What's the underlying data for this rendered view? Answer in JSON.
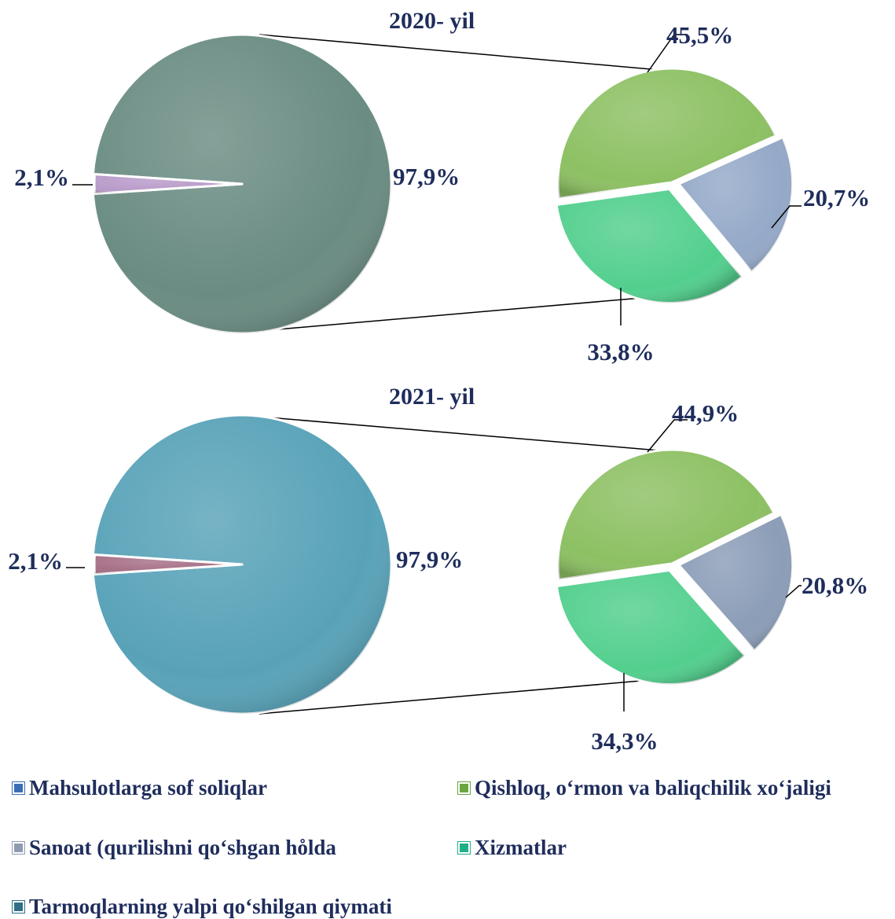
{
  "chart_data": [
    {
      "type": "pie",
      "title": "2020- yil",
      "main_pie": [
        {
          "label": "Mahsulotlarga sof soliqlar",
          "value": 2.1,
          "value_label": "2,1%",
          "color": "#b89ac9"
        },
        {
          "label": "Tarmoqlarning yalpi qo‘shilgan qiymati",
          "value": 97.9,
          "value_label": "97,9%",
          "color": "#6a8c82"
        }
      ],
      "breakdown_pie": [
        {
          "label": "Qishloq, o‘rmon va baliqchilik xo‘jaligi",
          "value": 45.5,
          "value_label": "45,5%",
          "color": "#8dc063"
        },
        {
          "label": "Sanoat (qurilishni qo‘shgan holda",
          "value": 20.7,
          "value_label": "20,7%",
          "color": "#94a9c8"
        },
        {
          "label": "Xizmatlar",
          "value": 33.8,
          "value_label": "33,8%",
          "color": "#52cf8d"
        }
      ]
    },
    {
      "type": "pie",
      "title": "2021- yil",
      "main_pie": [
        {
          "label": "Mahsulotlarga sof soliqlar",
          "value": 2.1,
          "value_label": "2,1%",
          "color": "#a66f86"
        },
        {
          "label": "Tarmoqlarning yalpi qo‘shilgan qiymati",
          "value": 97.9,
          "value_label": "97,9%",
          "color": "#58a2b8"
        }
      ],
      "breakdown_pie": [
        {
          "label": "Qishloq, o‘rmon va baliqchilik xo‘jaligi",
          "value": 44.9,
          "value_label": "44,9%",
          "color": "#8dc063"
        },
        {
          "label": "Sanoat (qurilishni qo‘shgan holda",
          "value": 20.8,
          "value_label": "20,8%",
          "color": "#8b9db7"
        },
        {
          "label": "Xizmatlar",
          "value": 34.3,
          "value_label": "34,3%",
          "color": "#52cf8d"
        }
      ]
    }
  ],
  "legend": [
    {
      "label": "Mahsulotlarga sof soliqlar",
      "color": "#3a6db5"
    },
    {
      "label": "Qishloq, o‘rmon va baliqchilik xo‘jaligi",
      "color": "#6aa640"
    },
    {
      "label": "Sanoat (qurilishni qo‘shgan ho̊lda",
      "color": "#8f9bb0"
    },
    {
      "label": "Xizmatlar",
      "color": "#1fae8a"
    },
    {
      "label": "Tarmoqlarning yalpi qo‘shilgan qiymati",
      "color": "#2f6f8a"
    }
  ]
}
